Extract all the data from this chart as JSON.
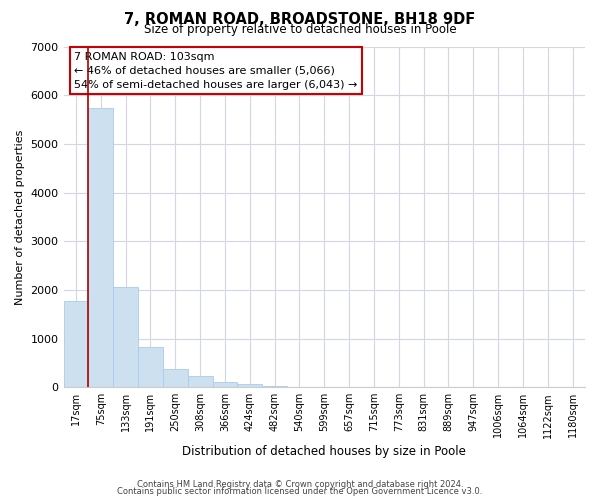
{
  "title": "7, ROMAN ROAD, BROADSTONE, BH18 9DF",
  "subtitle": "Size of property relative to detached houses in Poole",
  "xlabel": "Distribution of detached houses by size in Poole",
  "ylabel": "Number of detached properties",
  "categories": [
    "17sqm",
    "75sqm",
    "133sqm",
    "191sqm",
    "250sqm",
    "308sqm",
    "366sqm",
    "424sqm",
    "482sqm",
    "540sqm",
    "599sqm",
    "657sqm",
    "715sqm",
    "773sqm",
    "831sqm",
    "889sqm",
    "947sqm",
    "1006sqm",
    "1064sqm",
    "1122sqm",
    "1180sqm"
  ],
  "values": [
    1780,
    5730,
    2060,
    830,
    370,
    230,
    110,
    60,
    30,
    10,
    5,
    0,
    0,
    0,
    0,
    0,
    0,
    0,
    0,
    0,
    0
  ],
  "bar_color": "#cce0f0",
  "bar_edge_color": "#aaccee",
  "marker_line_color": "#aa0000",
  "ylim": [
    0,
    7000
  ],
  "yticks": [
    0,
    1000,
    2000,
    3000,
    4000,
    5000,
    6000,
    7000
  ],
  "annotation_line1": "7 ROMAN ROAD: 103sqm",
  "annotation_line2": "← 46% of detached houses are smaller (5,066)",
  "annotation_line3": "54% of semi-detached houses are larger (6,043) →",
  "footer_line1": "Contains HM Land Registry data © Crown copyright and database right 2024.",
  "footer_line2": "Contains public sector information licensed under the Open Government Licence v3.0.",
  "background_color": "#ffffff",
  "grid_color": "#d0d8e8"
}
